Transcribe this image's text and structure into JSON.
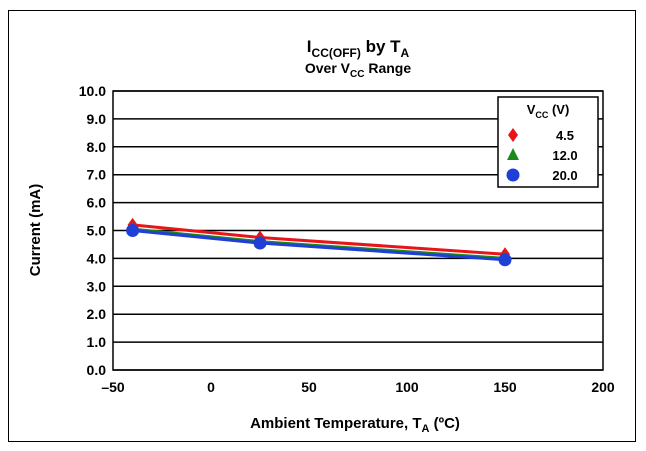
{
  "chart_data": {
    "type": "line",
    "title": {
      "main": "I",
      "main_sub": "CC(OFF)",
      "main_mid": " by T",
      "main_sub2": "A"
    },
    "subtitle": {
      "pre": "Over V",
      "sub": "CC",
      "post": " Range"
    },
    "xlabel": {
      "pre": "Ambient Temperature, T",
      "sub": "A",
      "post": " (ºC)"
    },
    "ylabel": "Current (mA)",
    "xlim": [
      -50,
      200
    ],
    "ylim": [
      0,
      10
    ],
    "xticks": [
      -50,
      0,
      50,
      100,
      150,
      200
    ],
    "xtick_labels": [
      "–50",
      "0",
      "50",
      "100",
      "150",
      "200"
    ],
    "yticks": [
      0,
      1,
      2,
      3,
      4,
      5,
      6,
      7,
      8,
      9,
      10
    ],
    "ytick_labels": [
      "0.0",
      "1.0",
      "2.0",
      "3.0",
      "4.0",
      "5.0",
      "6.0",
      "7.0",
      "8.0",
      "9.0",
      "10.0"
    ],
    "grid": "horizontal",
    "legend": {
      "title_pre": "V",
      "title_sub": "CC",
      "title_post": " (V)",
      "placement": "top-right"
    },
    "series": [
      {
        "name": "4.5",
        "color": "#e8141a",
        "marker": "diamond",
        "x": [
          -40,
          25,
          150
        ],
        "y": [
          5.2,
          4.75,
          4.15
        ]
      },
      {
        "name": "12.0",
        "color": "#1a8a1a",
        "marker": "triangle",
        "x": [
          -40,
          25,
          150
        ],
        "y": [
          5.05,
          4.6,
          4.0
        ]
      },
      {
        "name": "20.0",
        "color": "#1f3fd6",
        "marker": "circle",
        "x": [
          -40,
          25,
          150
        ],
        "y": [
          5.0,
          4.55,
          3.95
        ]
      }
    ]
  }
}
